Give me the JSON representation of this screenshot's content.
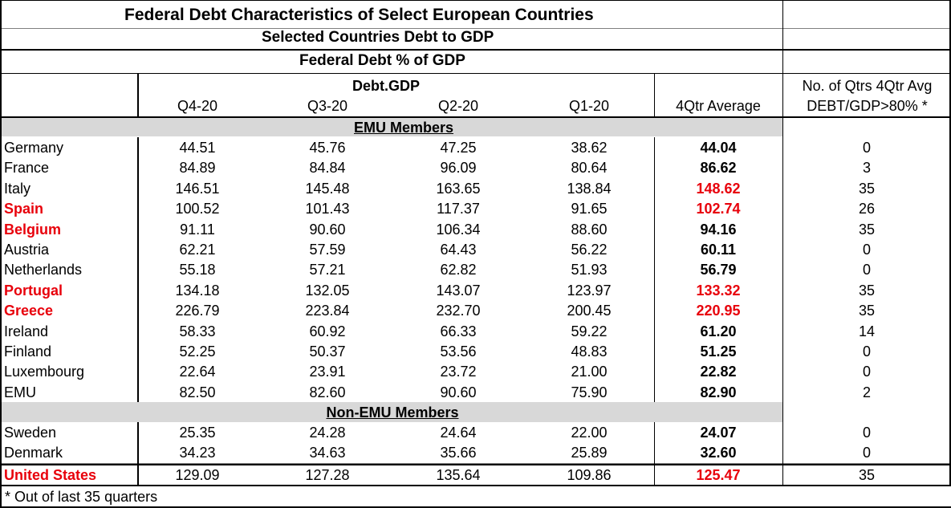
{
  "title": "Federal Debt Characteristics of Select European Countries",
  "subtitle": "Selected Countries Debt to GDP",
  "section_title": "Federal Debt % of GDP",
  "group_header": "Debt.GDP",
  "columns": [
    "Q4-20",
    "Q3-20",
    "Q2-20",
    "Q1-20",
    "4Qtr Average"
  ],
  "last_col_header": [
    "No. of Qtrs 4Qtr Avg",
    "DEBT/GDP>80% *"
  ],
  "emu_label": "EMU Members",
  "non_emu_label": "Non-EMU Members",
  "emu_rows": [
    {
      "country": "Germany",
      "q4": "44.51",
      "q3": "45.76",
      "q2": "47.25",
      "q1": "38.62",
      "avg": "44.04",
      "qtrs": "0",
      "highlight": false
    },
    {
      "country": "France",
      "q4": "84.89",
      "q3": "84.84",
      "q2": "96.09",
      "q1": "80.64",
      "avg": "86.62",
      "qtrs": "3",
      "highlight": false
    },
    {
      "country": "Italy",
      "q4": "146.51",
      "q3": "145.48",
      "q2": "163.65",
      "q1": "138.84",
      "avg": "148.62",
      "qtrs": "35",
      "highlight": false,
      "avg_red": true
    },
    {
      "country": "Spain",
      "q4": "100.52",
      "q3": "101.43",
      "q2": "117.37",
      "q1": "91.65",
      "avg": "102.74",
      "qtrs": "26",
      "highlight": true,
      "avg_red": true
    },
    {
      "country": "Belgium",
      "q4": "91.11",
      "q3": "90.60",
      "q2": "106.34",
      "q1": "88.60",
      "avg": "94.16",
      "qtrs": "35",
      "highlight": true
    },
    {
      "country": "Austria",
      "q4": "62.21",
      "q3": "57.59",
      "q2": "64.43",
      "q1": "56.22",
      "avg": "60.11",
      "qtrs": "0",
      "highlight": false
    },
    {
      "country": "Netherlands",
      "q4": "55.18",
      "q3": "57.21",
      "q2": "62.82",
      "q1": "51.93",
      "avg": "56.79",
      "qtrs": "0",
      "highlight": false
    },
    {
      "country": "Portugal",
      "q4": "134.18",
      "q3": "132.05",
      "q2": "143.07",
      "q1": "123.97",
      "avg": "133.32",
      "qtrs": "35",
      "highlight": true,
      "avg_red": true
    },
    {
      "country": "Greece",
      "q4": "226.79",
      "q3": "223.84",
      "q2": "232.70",
      "q1": "200.45",
      "avg": "220.95",
      "qtrs": "35",
      "highlight": true,
      "avg_red": true
    },
    {
      "country": "Ireland",
      "q4": "58.33",
      "q3": "60.92",
      "q2": "66.33",
      "q1": "59.22",
      "avg": "61.20",
      "qtrs": "14",
      "highlight": false
    },
    {
      "country": "Finland",
      "q4": "52.25",
      "q3": "50.37",
      "q2": "53.56",
      "q1": "48.83",
      "avg": "51.25",
      "qtrs": "0",
      "highlight": false
    },
    {
      "country": "Luxembourg",
      "q4": "22.64",
      "q3": "23.91",
      "q2": "23.72",
      "q1": "21.00",
      "avg": "22.82",
      "qtrs": "0",
      "highlight": false
    },
    {
      "country": "EMU",
      "q4": "82.50",
      "q3": "82.60",
      "q2": "90.60",
      "q1": "75.90",
      "avg": "82.90",
      "qtrs": "2",
      "highlight": false
    }
  ],
  "non_emu_rows": [
    {
      "country": "Sweden",
      "q4": "25.35",
      "q3": "24.28",
      "q2": "24.64",
      "q1": "22.00",
      "avg": "24.07",
      "qtrs": "0",
      "highlight": false
    },
    {
      "country": "Denmark",
      "q4": "34.23",
      "q3": "34.63",
      "q2": "35.66",
      "q1": "25.89",
      "avg": "32.60",
      "qtrs": "0",
      "highlight": false
    }
  ],
  "us_row": {
    "country": "United States",
    "q4": "129.09",
    "q3": "127.28",
    "q2": "135.64",
    "q1": "109.86",
    "avg": "125.47",
    "qtrs": "35",
    "highlight": true,
    "avg_red": true
  },
  "footnote": "* Out of last 35 quarters",
  "colors": {
    "red": "#e8000b",
    "gray_band": "#d8d8d8"
  }
}
